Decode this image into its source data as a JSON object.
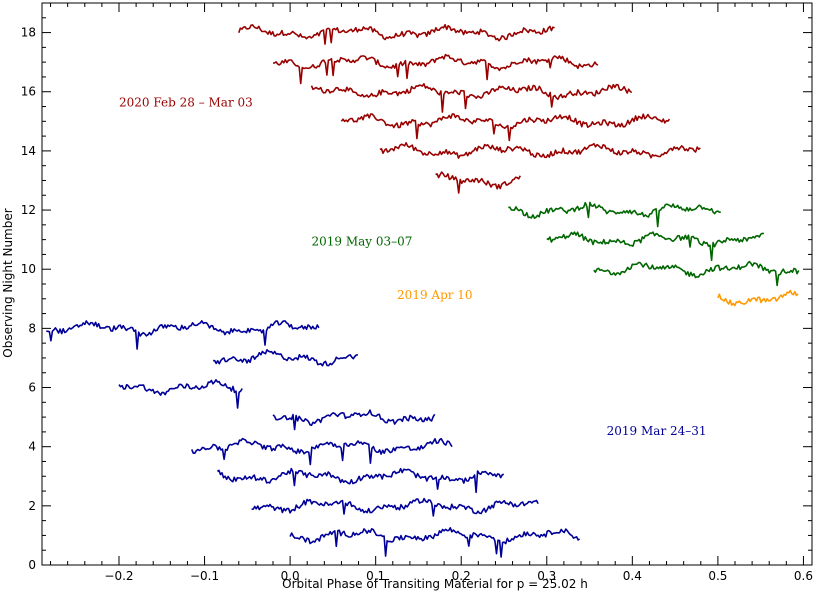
{
  "chart_data": {
    "type": "scatter",
    "xlabel": "Orbital Phase of Transiting Material for p = 25.02 h",
    "ylabel": "Observing Night Number",
    "xlim": [
      -0.29,
      0.61
    ],
    "ylim": [
      0,
      19
    ],
    "xticks": [
      -0.2,
      -0.1,
      0.0,
      0.1,
      0.2,
      0.3,
      0.4,
      0.5,
      0.6
    ],
    "xtick_labels": [
      "−0.2",
      "−0.1",
      "0.0",
      "0.1",
      "0.2",
      "0.3",
      "0.4",
      "0.5",
      "0.6"
    ],
    "yticks": [
      0,
      2,
      4,
      6,
      8,
      10,
      12,
      14,
      16,
      18
    ],
    "ytick_labels": [
      "0",
      "2",
      "4",
      "6",
      "8",
      "10",
      "12",
      "14",
      "16",
      "18"
    ],
    "grid": false,
    "series": [
      {
        "name": "2020 Feb 28 – Mar 03",
        "color": "#990000",
        "nights": [
          {
            "night": 18,
            "x_start": -0.06,
            "x_end": 0.31
          },
          {
            "night": 17,
            "x_start": -0.02,
            "x_end": 0.36
          },
          {
            "night": 16,
            "x_start": 0.025,
            "x_end": 0.4
          },
          {
            "night": 15,
            "x_start": 0.06,
            "x_end": 0.445
          },
          {
            "night": 14,
            "x_start": 0.105,
            "x_end": 0.48
          },
          {
            "night": 13,
            "x_start": 0.17,
            "x_end": 0.27
          }
        ]
      },
      {
        "name": "2019 May 03–07",
        "color": "#006600",
        "nights": [
          {
            "night": 12,
            "x_start": 0.255,
            "x_end": 0.505
          },
          {
            "night": 11,
            "x_start": 0.3,
            "x_end": 0.555
          },
          {
            "night": 10,
            "x_start": 0.355,
            "x_end": 0.595
          }
        ]
      },
      {
        "name": "2019 Apr 10",
        "color": "#ff9900",
        "nights": [
          {
            "night": 9,
            "x_start": 0.5,
            "x_end": 0.595
          }
        ]
      },
      {
        "name": "2019 Mar 24–31",
        "color": "#000099",
        "nights": [
          {
            "night": 8,
            "x_start": -0.285,
            "x_end": 0.035
          },
          {
            "night": 7,
            "x_start": -0.09,
            "x_end": 0.08
          },
          {
            "night": 6,
            "x_start": -0.2,
            "x_end": -0.055
          },
          {
            "night": 5,
            "x_start": -0.02,
            "x_end": 0.17
          },
          {
            "night": 4,
            "x_start": -0.115,
            "x_end": 0.19
          },
          {
            "night": 3,
            "x_start": -0.085,
            "x_end": 0.25
          },
          {
            "night": 2,
            "x_start": -0.045,
            "x_end": 0.29
          },
          {
            "night": 1,
            "x_start": 0.0,
            "x_end": 0.34
          }
        ]
      }
    ],
    "annotations": [
      {
        "text": "2020 Feb 28 – Mar 03",
        "x": -0.2,
        "y": 15.5,
        "color": "#990000"
      },
      {
        "text": "2019 May 03–07",
        "x": 0.025,
        "y": 10.8,
        "color": "#006600"
      },
      {
        "text": "2019 Apr 10",
        "x": 0.125,
        "y": 9.0,
        "color": "#ff9900"
      },
      {
        "text": "2019 Mar 24–31",
        "x": 0.37,
        "y": 4.4,
        "color": "#000099"
      }
    ]
  }
}
